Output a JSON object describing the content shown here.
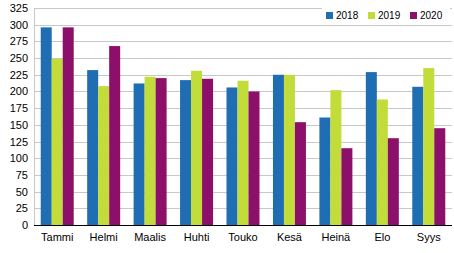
{
  "chart_data": {
    "type": "bar",
    "categories": [
      "Tammi",
      "Helmi",
      "Maalis",
      "Huhti",
      "Touko",
      "Kesä",
      "Heinä",
      "Elo",
      "Syys"
    ],
    "series": [
      {
        "name": "2018",
        "color": "#1f6eb4",
        "values": [
          296,
          232,
          212,
          217,
          206,
          225,
          161,
          229,
          207
        ]
      },
      {
        "name": "2019",
        "color": "#c2dc3a",
        "values": [
          249,
          208,
          222,
          231,
          216,
          225,
          202,
          188,
          235
        ]
      },
      {
        "name": "2020",
        "color": "#8c1069",
        "values": [
          296,
          268,
          220,
          219,
          200,
          154,
          115,
          130,
          145
        ]
      }
    ],
    "ylim": [
      0,
      325
    ],
    "yticks": [
      0,
      25,
      50,
      75,
      100,
      125,
      150,
      175,
      200,
      225,
      250,
      275,
      300,
      325
    ],
    "grid": true,
    "legend": "top-right"
  }
}
